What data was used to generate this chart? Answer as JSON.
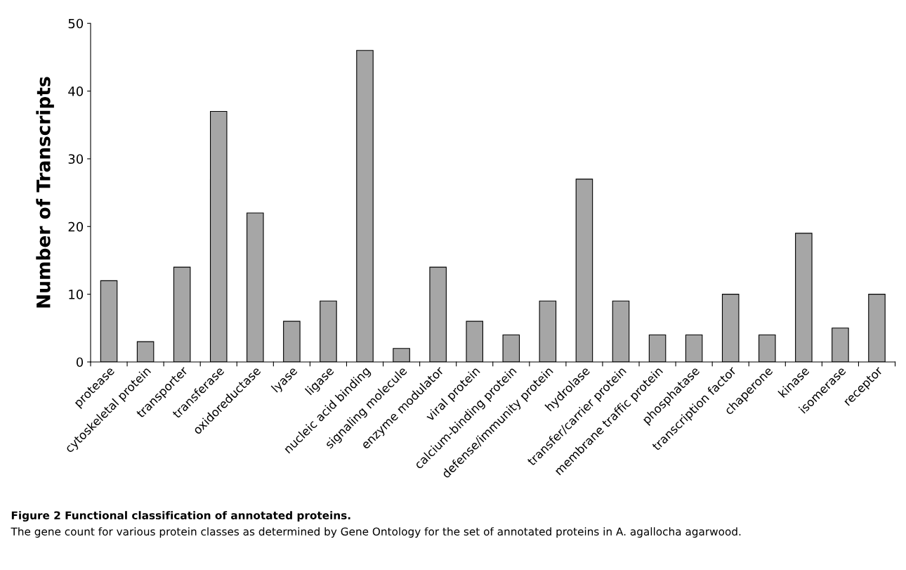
{
  "chart_data": {
    "type": "bar",
    "title": "Figure 2 Functional classification of annotated proteins.",
    "ylabel": "Number of Transcripts",
    "categories": [
      "protease",
      "cytoskeletal protein",
      "transporter",
      "transferase",
      "oxidoreductase",
      "lyase",
      "ligase",
      "nucleic acid binding",
      "signaling molecule",
      "enzyme modulator",
      "viral protein",
      "calcium-binding protein",
      "defense/immunity protein",
      "hydrolase",
      "transfer/carrier protein",
      "membrane traffic protein",
      "phosphatase",
      "transcription factor",
      "chaperone",
      "kinase",
      "isomerase",
      "receptor"
    ],
    "values": [
      12,
      3,
      14,
      37,
      22,
      6,
      9,
      46,
      2,
      14,
      6,
      4,
      9,
      27,
      9,
      4,
      4,
      10,
      4,
      19,
      5,
      10
    ],
    "color": "#a6a6a6",
    "ylim": [
      0,
      50
    ],
    "yticks": [
      0,
      10,
      20,
      30,
      40,
      50
    ],
    "grid": false,
    "legend": false,
    "annotations": [
      "The gene count for various protein classes as determined by Gene Ontology for the set of annotated proteins in A. agallocha agarwood."
    ]
  }
}
